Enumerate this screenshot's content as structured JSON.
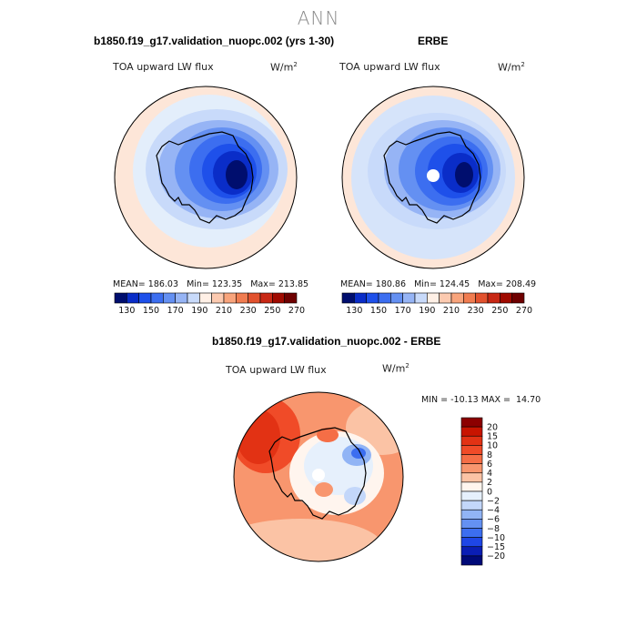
{
  "season": "ANN",
  "panels": {
    "model": {
      "title": "b1850.f19_g17.validation_nuopc.002 (yrs 1-30)",
      "var": "TOA upward LW flux",
      "units_base": "W/m",
      "units_exp": "2",
      "stats": "MEAN= 186.03   Min= 123.35   Max= 213.85"
    },
    "obs": {
      "title": "ERBE",
      "var": "TOA upward LW flux",
      "units_base": "W/m",
      "units_exp": "2",
      "stats": "MEAN= 180.86   Min= 124.45   Max= 208.49"
    },
    "diff": {
      "title": "b1850.f19_g17.validation_nuopc.002 - ERBE",
      "var": "TOA upward LW flux",
      "units_base": "W/m",
      "units_exp": "2",
      "stats": "MIN = -10.13 MAX =  14.70"
    }
  },
  "colorbar_main": {
    "labels": [
      "130",
      "150",
      "170",
      "190",
      "210",
      "230",
      "250",
      "270"
    ],
    "colors": [
      "#000e6e",
      "#0a2dc8",
      "#1e50ea",
      "#3c6ef0",
      "#6490f2",
      "#96b4f5",
      "#c8dafa",
      "#fff0e6",
      "#fccab0",
      "#f8a47c",
      "#f07c50",
      "#e2522e",
      "#c82814",
      "#a00a00",
      "#6e0000"
    ]
  },
  "colorbar_diff": {
    "labels": [
      "20",
      "15",
      "10",
      "8",
      "6",
      "4",
      "2",
      "0",
      "−2",
      "−4",
      "−6",
      "−8",
      "−10",
      "−15",
      "−20"
    ],
    "colors": [
      "#8c0000",
      "#c81400",
      "#e23214",
      "#f04b28",
      "#f56e46",
      "#f8966e",
      "#fbc3a5",
      "#fff5ee",
      "#e6f0fc",
      "#c3d7fa",
      "#91b4f5",
      "#6491f2",
      "#3c6ef0",
      "#1e46e6",
      "#0a1eb4",
      "#000a78"
    ]
  }
}
